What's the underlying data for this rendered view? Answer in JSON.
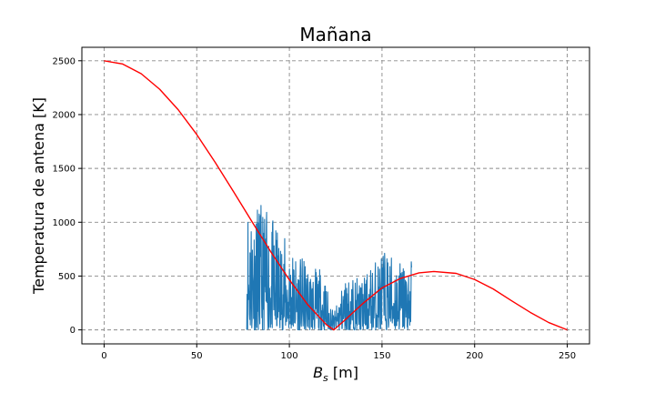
{
  "chart_data": {
    "type": "line",
    "title": "Mañana",
    "xlabel_main": "B",
    "xlabel_sub": "s",
    "xlabel_unit": " [m]",
    "ylabel": "Temperatura de antena [K]",
    "xlim": [
      -12,
      262
    ],
    "ylim": [
      -130,
      2625
    ],
    "xticks": [
      0,
      50,
      100,
      150,
      200,
      250
    ],
    "yticks": [
      0,
      500,
      1000,
      1500,
      2000,
      2500
    ],
    "grid": true,
    "grid_style": "dashed",
    "colors": {
      "red_series": "#ff0000",
      "blue_series": "#1f77b4",
      "grid": "#8a8a8a"
    },
    "series": [
      {
        "style": "smooth-curve",
        "color": "#ff0000",
        "x": [
          0,
          10,
          20,
          30,
          40,
          50,
          60,
          70,
          80,
          90,
          100,
          110,
          120,
          124,
          130,
          140,
          150,
          160,
          170,
          178,
          190,
          200,
          210,
          220,
          230,
          240,
          250
        ],
        "y": [
          2500,
          2470,
          2380,
          2235,
          2045,
          1815,
          1555,
          1280,
          1000,
          725,
          465,
          232,
          48,
          0,
          92,
          250,
          390,
          478,
          530,
          542,
          525,
          468,
          380,
          270,
          163,
          68,
          0
        ]
      },
      {
        "style": "noisy-oscillation",
        "color": "#1f77b4",
        "x_start": 77,
        "x_end": 166,
        "envelope_x": [
          77,
          80,
          90,
          100,
          110,
          118,
          124,
          130,
          140,
          150,
          160,
          166
        ],
        "envelope_y": [
          1300,
          1250,
          1050,
          800,
          600,
          560,
          150,
          500,
          480,
          760,
          680,
          650
        ]
      }
    ]
  }
}
